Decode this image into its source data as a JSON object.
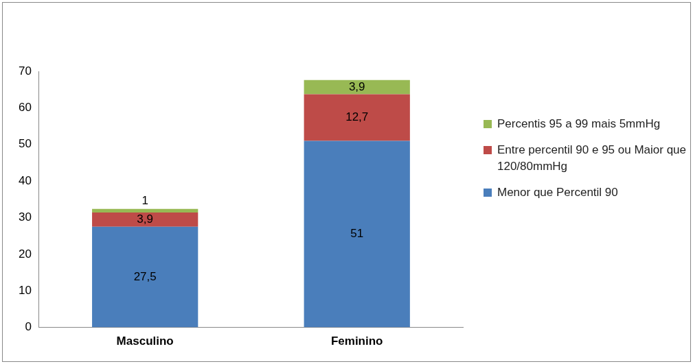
{
  "chart_data": {
    "type": "bar",
    "stacked": true,
    "categories": [
      "Masculino",
      "Feminino"
    ],
    "series": [
      {
        "name": "Menor que Percentil 90",
        "color": "#4a7ebb",
        "values": [
          27.5,
          51
        ],
        "value_labels": [
          "27,5",
          "51"
        ]
      },
      {
        "name": "Entre percentil 90 e 95 ou Maior que 120/80mmHg",
        "color": "#be4b48",
        "values": [
          3.9,
          12.7
        ],
        "value_labels": [
          "3,9",
          "12,7"
        ]
      },
      {
        "name": "Percentis 95 a 99 mais 5mmHg",
        "color": "#98b954",
        "values": [
          1,
          3.9
        ],
        "value_labels": [
          "1",
          "3,9"
        ]
      }
    ],
    "ylim": [
      0,
      70
    ],
    "yticks": [
      0,
      10,
      20,
      30,
      40,
      50,
      60,
      70
    ],
    "grid": false,
    "legend": "right"
  }
}
